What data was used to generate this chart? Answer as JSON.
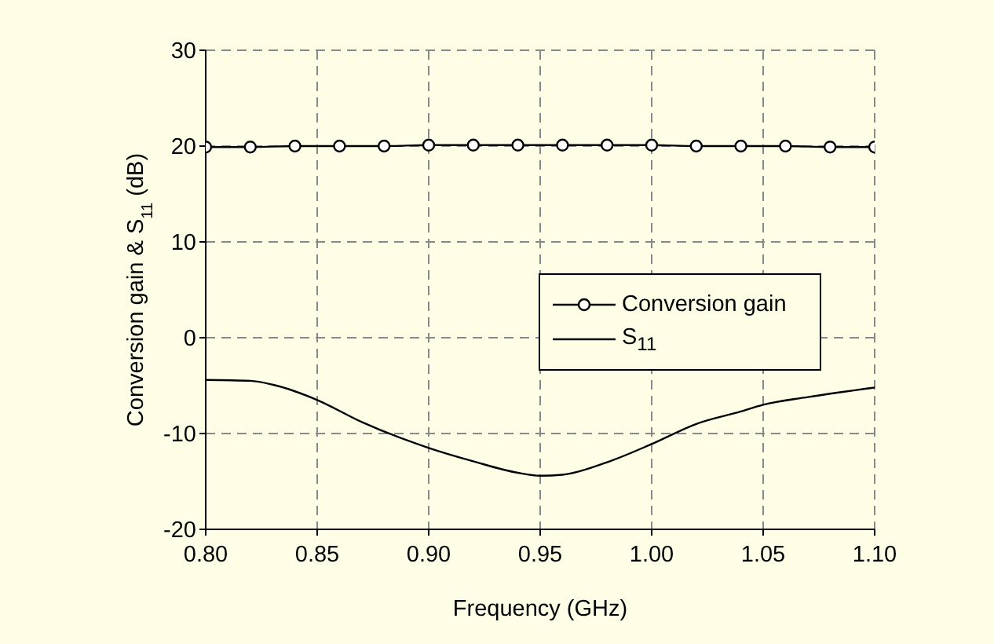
{
  "chart_data": {
    "type": "line",
    "xlabel": "Frequency (GHz)",
    "ylabel": "Conversion gain & S$_{11}$ (dB)",
    "xlim": [
      0.8,
      1.1
    ],
    "xticks": [
      {
        "value": 0.8,
        "label": "0.80"
      },
      {
        "value": 0.85,
        "label": "0.85"
      },
      {
        "value": 0.9,
        "label": "0.90"
      },
      {
        "value": 0.95,
        "label": "0.95"
      },
      {
        "value": 1.0,
        "label": "1.00"
      },
      {
        "value": 1.05,
        "label": "1.05"
      },
      {
        "value": 1.1,
        "label": "1.10"
      }
    ],
    "ylim": [
      -20,
      30
    ],
    "yticks": [
      -20,
      -10,
      0,
      10,
      20,
      30
    ],
    "grid": true,
    "legend": "right",
    "series": [
      {
        "name": "Conversion gain",
        "color": "#000000",
        "marker": "circle",
        "x": [
          0.8,
          0.82,
          0.84,
          0.86,
          0.88,
          0.9,
          0.92,
          0.94,
          0.96,
          0.98,
          1.0,
          1.02,
          1.04,
          1.06,
          1.08,
          1.1
        ],
        "values": [
          19.9,
          19.9,
          20,
          20,
          20,
          20.1,
          20.1,
          20.1,
          20.1,
          20.1,
          20.1,
          20,
          20,
          20,
          19.9,
          19.9
        ]
      },
      {
        "name": "S$_{11}$",
        "color": "#000000",
        "marker": "none",
        "x": [
          0.8,
          0.82,
          0.83,
          0.85,
          0.87,
          0.9,
          0.92,
          0.94,
          0.95,
          0.96,
          0.98,
          1.0,
          1.02,
          1.04,
          1.05,
          1.07,
          1.1
        ],
        "values": [
          -4.4,
          -4.5,
          -4.9,
          -6.5,
          -8.8,
          -11.5,
          -12.9,
          -14.1,
          -14.4,
          -14.3,
          -13,
          -11.1,
          -9,
          -7.7,
          -7,
          -6.2,
          -5.2
        ]
      }
    ]
  }
}
